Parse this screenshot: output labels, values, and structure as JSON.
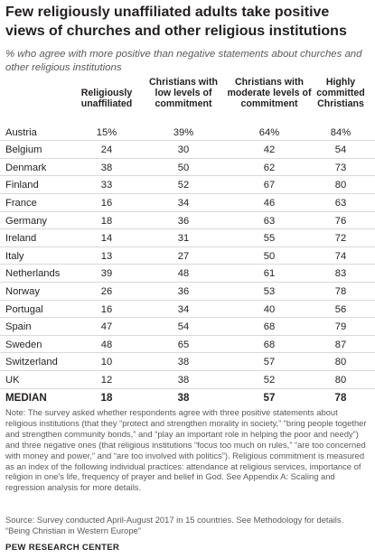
{
  "title": "Few religiously unaffiliated adults take positive views of churches and other religious institutions",
  "subtitle": "% who agree with more positive than negative statements about churches and other religious institutions",
  "chart_data": {
    "type": "table",
    "columns": [
      "Religiously unaffiliated",
      "Christians with low levels of commitment",
      "Christians with moderate levels of commitment",
      "Highly committed Christians"
    ],
    "rows": [
      {
        "country": "Austria",
        "values": [
          "15%",
          "39%",
          "64%",
          "84%"
        ]
      },
      {
        "country": "Belgium",
        "values": [
          "24",
          "30",
          "42",
          "54"
        ]
      },
      {
        "country": "Denmark",
        "values": [
          "38",
          "50",
          "62",
          "73"
        ]
      },
      {
        "country": "Finland",
        "values": [
          "33",
          "52",
          "67",
          "80"
        ]
      },
      {
        "country": "France",
        "values": [
          "16",
          "34",
          "46",
          "63"
        ]
      },
      {
        "country": "Germany",
        "values": [
          "18",
          "36",
          "63",
          "76"
        ]
      },
      {
        "country": "Ireland",
        "values": [
          "14",
          "31",
          "55",
          "72"
        ]
      },
      {
        "country": "Italy",
        "values": [
          "13",
          "27",
          "50",
          "74"
        ]
      },
      {
        "country": "Netherlands",
        "values": [
          "39",
          "48",
          "61",
          "83"
        ]
      },
      {
        "country": "Norway",
        "values": [
          "26",
          "36",
          "53",
          "78"
        ]
      },
      {
        "country": "Portugal",
        "values": [
          "16",
          "34",
          "40",
          "56"
        ]
      },
      {
        "country": "Spain",
        "values": [
          "47",
          "54",
          "68",
          "79"
        ]
      },
      {
        "country": "Sweden",
        "values": [
          "48",
          "65",
          "68",
          "87"
        ]
      },
      {
        "country": "Switzerland",
        "values": [
          "10",
          "38",
          "57",
          "80"
        ]
      },
      {
        "country": "UK",
        "values": [
          "12",
          "38",
          "52",
          "80"
        ]
      }
    ],
    "median": {
      "country": "MEDIAN",
      "values": [
        "18",
        "38",
        "57",
        "78"
      ]
    }
  },
  "note": "Note: The survey asked whether respondents agree with three positive statements about religious institutions (that they “protect and strengthen morality in society,” “bring people together and strengthen community bonds,” and “play an important role in helping the poor and needy”) and three negative ones (that religious institutions “focus too much on rules,” “are too concerned with money and power,” and “are too involved with politics”). Religious commitment is measured as an index of the following individual practices: attendance at religious services, importance of religion in one’s life, frequency of prayer and belief in God. See Appendix A: Scaling and regression analysis for more details.",
  "source": "Source: Survey conducted April-August 2017 in 15 countries. See Methodology for details.",
  "report": "“Being Christian in Western Europe”",
  "brand": "PEW RESEARCH CENTER"
}
